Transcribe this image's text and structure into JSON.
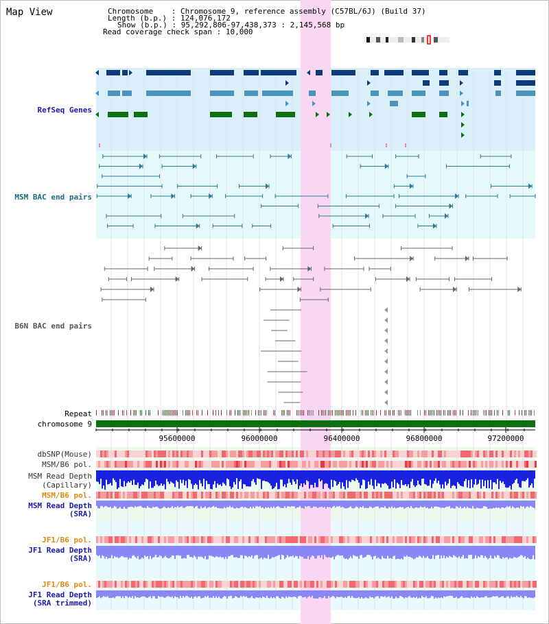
{
  "title": "Map View",
  "header": {
    "chromosome_key": "Chromosome",
    "chromosome_val": ": Chromosome 9, reference assembly (C57BL/6J) (Build 37)",
    "length_key": "Length (b.p.)",
    "length_val": ": 124,076,172",
    "show_key": "Show (b.p.)",
    "show_val": ": 95,292,806-97,438,373 : 2,145,568 bp",
    "span_key": "Read coverage check span",
    "span_val": ": 10,000"
  },
  "tracks": {
    "refseq": "RefSeq Genes",
    "msm_bac": "MSM BAC end pairs",
    "b6n_bac": "B6N BAC end pairs",
    "repeat": "Repeat",
    "chromosome": "chromosome 9",
    "dbsnp": "dbSNP(Mouse)",
    "msm_b6_pol": "MSM/B6 pol.",
    "msm_depth_cap_1": "MSM Read Depth",
    "msm_depth_cap_2": "(Capillary)",
    "msm_b6_pol_sra": "MSM/B6 pol.",
    "msm_depth_sra_1": "MSM Read Depth",
    "msm_depth_sra_2": "(SRA)",
    "jf1_b6_pol": "JF1/B6 pol.",
    "jf1_depth_1": "JF1 Read Depth",
    "jf1_depth_2": "(SRA)",
    "jf1_b6_pol_trim": "JF1/B6 pol.",
    "jf1_depth_trim_1": "JF1 Read Depth",
    "jf1_depth_trim_2": "(SRA trimmed)"
  },
  "axis": {
    "ticks": [
      "95600000",
      "96000000",
      "96400000",
      "96800000",
      "97200000"
    ]
  },
  "colors": {
    "refseq_bg": "#dbeffa",
    "msm_bg": "#e6f9fa",
    "b6n_bg": "#ffffff",
    "highlight": "#f9d7f2",
    "gene_dark": "#0d3a78",
    "gene_mid": "#4a93bd",
    "gene_green": "#0c6f10",
    "msm_line": "#2a7a94",
    "b6n_line": "#666666",
    "depth_blue": "#1a22e0",
    "depth_light": "#8a87f5"
  }
}
